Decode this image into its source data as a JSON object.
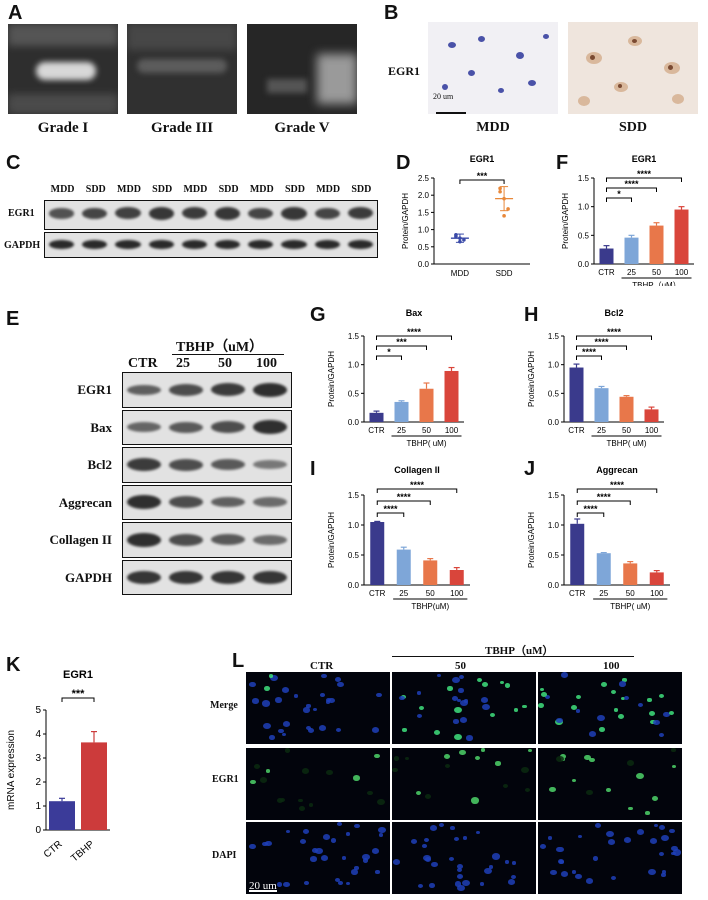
{
  "panel_letters": {
    "a": "A",
    "b": "B",
    "c": "C",
    "d": "D",
    "e": "E",
    "f": "F",
    "g": "G",
    "h": "H",
    "i": "I",
    "j": "J",
    "k": "K",
    "l": "L"
  },
  "panel_a": {
    "grades": [
      "Grade I",
      "Grade III",
      "Grade V"
    ]
  },
  "panel_b": {
    "row_label": "EGR1",
    "scale_bar": "20 um",
    "groups": [
      "MDD",
      "SDD"
    ]
  },
  "panel_c": {
    "lanes": [
      "MDD",
      "SDD",
      "MDD",
      "SDD",
      "MDD",
      "SDD",
      "MDD",
      "SDD",
      "MDD",
      "SDD"
    ],
    "rows": [
      "EGR1",
      "GAPDH"
    ],
    "band_intensity": [
      0.55,
      0.7,
      0.75,
      0.85,
      0.8,
      0.85,
      0.7,
      0.85,
      0.7,
      0.8
    ]
  },
  "panel_e": {
    "ctr": "CTR",
    "tbhp": "TBHP（uM）",
    "doses": [
      "25",
      "50",
      "100"
    ],
    "rows": [
      "EGR1",
      "Bax",
      "Bcl2",
      "Aggrecan",
      "Collagen II",
      "GAPDH"
    ],
    "band_intensity": [
      [
        0.55,
        0.7,
        0.85,
        0.95
      ],
      [
        0.5,
        0.6,
        0.7,
        0.95
      ],
      [
        0.85,
        0.7,
        0.6,
        0.35
      ],
      [
        0.95,
        0.7,
        0.55,
        0.45
      ],
      [
        0.95,
        0.7,
        0.6,
        0.45
      ],
      [
        0.9,
        0.9,
        0.9,
        0.9
      ]
    ]
  },
  "panel_l": {
    "ctr": "CTR",
    "tbhp": "TBHP（uM）",
    "doses": [
      "50",
      "100"
    ],
    "rows": [
      "Merge",
      "EGR1",
      "DAPI"
    ],
    "scale_bar": "20 um"
  },
  "colors": {
    "ctr": "#3a3a8c",
    "d25": "#7ea6d8",
    "d50": "#e8774a",
    "d100": "#d9453b",
    "k_ctr": "#3b3b99",
    "k_tbhp": "#cc3b3b",
    "d_mdd": "#3a4aa8",
    "d_sdd": "#e8883a"
  },
  "chart_data": [
    {
      "id": "D",
      "type": "scatter",
      "title": "EGR1",
      "ylabel": "Protein/GAPDH",
      "categories": [
        "MDD",
        "SDD"
      ],
      "ylim": [
        0,
        2.5
      ],
      "yticks": [
        "0.0",
        "0.5",
        "1.0",
        "1.5",
        "2.0",
        "2.5"
      ],
      "series": [
        {
          "values": [
            0.8,
            0.75,
            0.7,
            0.85,
            0.65
          ]
        },
        {
          "values": [
            2.2,
            1.9,
            1.6,
            2.1,
            1.4
          ]
        }
      ],
      "means": [
        0.75,
        1.9
      ],
      "sd": [
        0.12,
        0.35
      ],
      "sig": [
        "***"
      ]
    },
    {
      "id": "F",
      "type": "bar",
      "title": "EGR1",
      "ylabel": "Protein/GAPDH",
      "xlabel": "TBHP（uM）",
      "categories": [
        "CTR",
        "25",
        "50",
        "100"
      ],
      "values": [
        0.27,
        0.46,
        0.67,
        0.95
      ],
      "err": [
        0.05,
        0.04,
        0.05,
        0.05
      ],
      "ylim": [
        0,
        1.5
      ],
      "yticks": [
        "0.0",
        "0.5",
        "1.0",
        "1.5"
      ],
      "sig": [
        "*",
        "****",
        "****"
      ]
    },
    {
      "id": "G",
      "type": "bar",
      "title": "Bax",
      "ylabel": "Protein/GAPDH",
      "xlabel": "TBHP( uM)",
      "categories": [
        "CTR",
        "25",
        "50",
        "100"
      ],
      "values": [
        0.16,
        0.35,
        0.58,
        0.89
      ],
      "err": [
        0.03,
        0.02,
        0.1,
        0.06
      ],
      "ylim": [
        0,
        1.5
      ],
      "yticks": [
        "0.0",
        "0.5",
        "1.0",
        "1.5"
      ],
      "sig": [
        "*",
        "***",
        "****"
      ]
    },
    {
      "id": "H",
      "type": "bar",
      "title": "Bcl2",
      "ylabel": "Protein/GAPDH",
      "xlabel": "TBHP( uM)",
      "categories": [
        "CTR",
        "25",
        "50",
        "100"
      ],
      "values": [
        0.95,
        0.59,
        0.44,
        0.22
      ],
      "err": [
        0.06,
        0.03,
        0.02,
        0.04
      ],
      "ylim": [
        0,
        1.5
      ],
      "yticks": [
        "0.0",
        "0.5",
        "1.0",
        "1.5"
      ],
      "sig": [
        "****",
        "****",
        "****"
      ]
    },
    {
      "id": "I",
      "type": "bar",
      "title": "Collagen II",
      "ylabel": "Protein/GAPDH",
      "xlabel": "TBHP(uM)",
      "categories": [
        "CTR",
        "25",
        "50",
        "100"
      ],
      "values": [
        1.05,
        0.59,
        0.41,
        0.25
      ],
      "err": [
        0.01,
        0.04,
        0.03,
        0.04
      ],
      "ylim": [
        0,
        1.5
      ],
      "yticks": [
        "0.0",
        "0.5",
        "1.0",
        "1.5"
      ],
      "sig": [
        "****",
        "****",
        "****"
      ]
    },
    {
      "id": "J",
      "type": "bar",
      "title": "Aggrecan",
      "ylabel": "Protein/GAPDH",
      "xlabel": "TBHP( uM)",
      "categories": [
        "CTR",
        "25",
        "50",
        "100"
      ],
      "values": [
        1.02,
        0.53,
        0.36,
        0.21
      ],
      "err": [
        0.08,
        0.01,
        0.03,
        0.03
      ],
      "ylim": [
        0,
        1.5
      ],
      "yticks": [
        "0.0",
        "0.5",
        "1.0",
        "1.5"
      ],
      "sig": [
        "****",
        "****",
        "****"
      ]
    },
    {
      "id": "K",
      "type": "bar",
      "title": "EGR1",
      "ylabel": "mRNA expression",
      "categories": [
        "CTR",
        "TBHP"
      ],
      "values": [
        1.2,
        3.65
      ],
      "err": [
        0.12,
        0.45
      ],
      "ylim": [
        0,
        5
      ],
      "yticks": [
        "0",
        "1",
        "2",
        "3",
        "4",
        "5"
      ],
      "sig": [
        "***"
      ]
    }
  ]
}
